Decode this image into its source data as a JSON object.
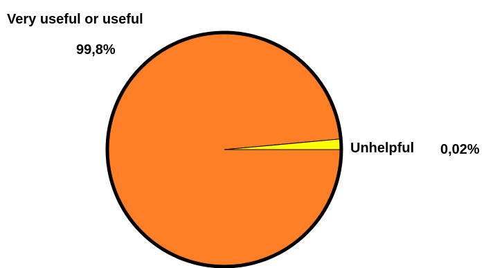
{
  "chart_data": {
    "type": "pie",
    "slices": [
      {
        "label": "Very useful or useful",
        "value_text": "99,8%",
        "value": 99.8,
        "color": "#FF7F27"
      },
      {
        "label": "Unhelpful",
        "value_text": "0,02%",
        "value": 0.02,
        "color": "#FFFF00"
      }
    ],
    "outline_color": "#000000",
    "legend": "none"
  }
}
